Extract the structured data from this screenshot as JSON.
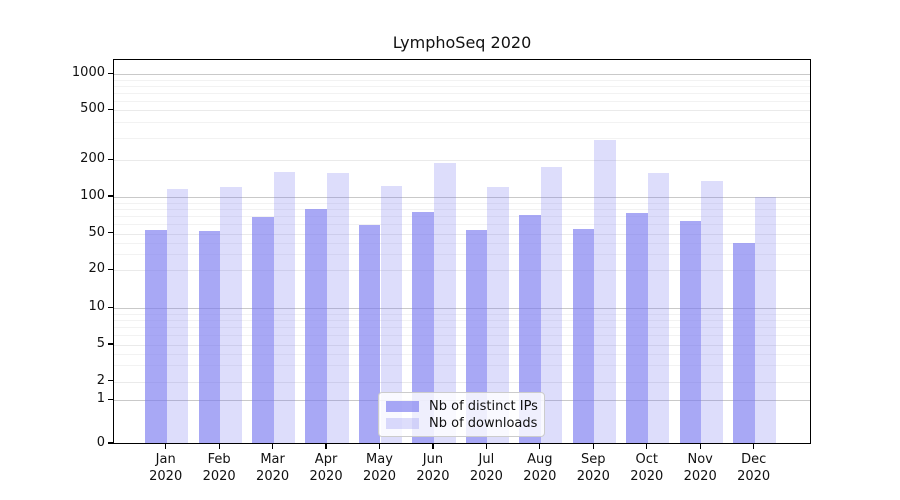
{
  "chart_data": {
    "type": "bar",
    "title": "LymphoSeq 2020",
    "categories": [
      "Jan 2020",
      "Feb 2020",
      "Mar 2020",
      "Apr 2020",
      "May 2020",
      "Jun 2020",
      "Jul 2020",
      "Aug 2020",
      "Sep 2020",
      "Oct 2020",
      "Nov 2020",
      "Dec 2020"
    ],
    "series": [
      {
        "name": "Nb of distinct IPs",
        "color": "rgba(121,121,240,0.65)",
        "color_hex_on_white": "#a6a6f6",
        "values": [
          54,
          53,
          68,
          80,
          59,
          76,
          54,
          71,
          55,
          74,
          64,
          40
        ]
      },
      {
        "name": "Nb of downloads",
        "color": "rgba(121,121,240,0.25)",
        "color_hex_on_white": "#dcdcfb",
        "values": [
          116,
          121,
          160,
          158,
          122,
          190,
          120,
          175,
          290,
          158,
          135,
          100
        ]
      }
    ],
    "y_axis": {
      "tick_labels": [
        "0",
        "1",
        "2",
        "5",
        "10",
        "20",
        "50",
        "100",
        "200",
        "500",
        "1000"
      ],
      "tick_values": [
        0,
        1,
        2,
        5,
        10,
        20,
        50,
        100,
        200,
        500,
        1000
      ],
      "scale": "log-like"
    },
    "legend": {
      "position": "lower-center-inside"
    },
    "grid": true,
    "colors": {
      "bar_base": "#7979f0",
      "grid_decade": "#c9c9c9",
      "grid_labeled": "#eaeaea",
      "grid_minor": "#f2f2f2",
      "axis": "#000000",
      "background": "#ffffff"
    }
  }
}
